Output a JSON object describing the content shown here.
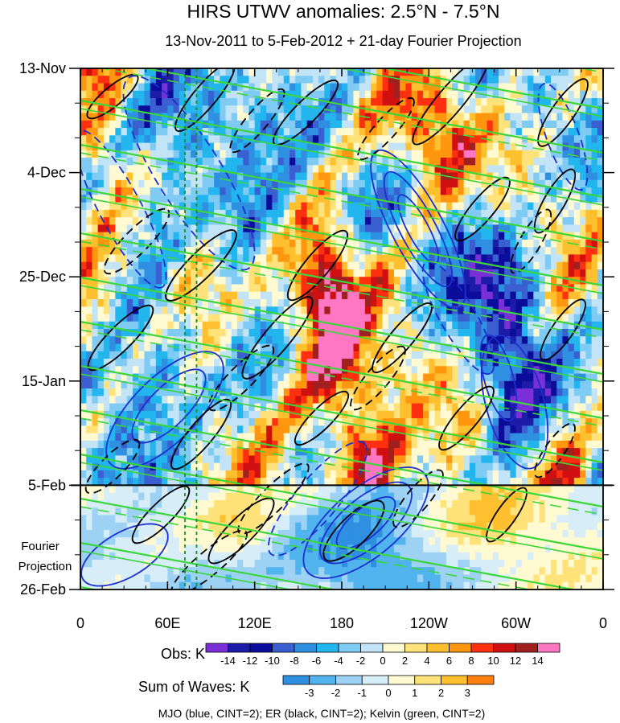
{
  "chart_data": {
    "type": "heatmap",
    "title": "HIRS UTWV anomalies: 2.5°N - 7.5°N",
    "subtitle": "13-Nov-2011 to 5-Feb-2012 + 21-day Fourier Projection",
    "x_axis": {
      "ticks": [
        {
          "lon": 0,
          "label": "0"
        },
        {
          "lon": 60,
          "label": "60E"
        },
        {
          "lon": 120,
          "label": "120E"
        },
        {
          "lon": 180,
          "label": "180"
        },
        {
          "lon": 240,
          "label": "120W"
        },
        {
          "lon": 300,
          "label": "60W"
        },
        {
          "lon": 360,
          "label": "0"
        }
      ],
      "range": [
        0,
        360
      ]
    },
    "y_axis": {
      "ticks": [
        {
          "day": 0,
          "label": "13-Nov"
        },
        {
          "day": 21,
          "label": "4-Dec"
        },
        {
          "day": 42,
          "label": "25-Dec"
        },
        {
          "day": 63,
          "label": "15-Jan"
        },
        {
          "day": 84,
          "label": "5-Feb"
        },
        {
          "day": 105,
          "label": "26-Feb"
        }
      ],
      "range_days": [
        0,
        105
      ]
    },
    "forecast_start_day": 84,
    "forecast_label": [
      "Fourier",
      "Projection"
    ],
    "vertical_lines_lon": [
      72,
      80
    ],
    "obs_colorbar": {
      "label": "Obs: K",
      "levels": [
        "-14",
        "-12",
        "-10",
        "-8",
        "-6",
        "-4",
        "-2",
        "0",
        "2",
        "4",
        "6",
        "8",
        "10",
        "12",
        "14"
      ],
      "colors": [
        "#7b2fd6",
        "#1c1ca8",
        "#0c0c9a",
        "#3a5fd0",
        "#2f8fe0",
        "#23b5ee",
        "#7fcbf4",
        "#c3e4f6",
        "#fffad2",
        "#ffe27a",
        "#ffc030",
        "#ff9610",
        "#ff3010",
        "#d01010",
        "#a02020",
        "#ff77c2"
      ]
    },
    "waves_colorbar": {
      "label": "Sum of Waves: K",
      "levels": [
        "-3",
        "-2",
        "-1",
        "0",
        "1",
        "2",
        "3"
      ],
      "colors": [
        "#2f8fe0",
        "#52b4ee",
        "#9dd2f4",
        "#d7edf8",
        "#fffad2",
        "#ffe27a",
        "#ffc030",
        "#ff8010"
      ]
    },
    "footer": "MJO (blue, CINT=2); ER (black, CINT=2); Kelvin (green, CINT=2)",
    "wave_colors": {
      "mjo": "#1a2fd0",
      "er": "#000000",
      "kelvin": "#3ad63a",
      "vline": "#1f8a2a"
    }
  }
}
